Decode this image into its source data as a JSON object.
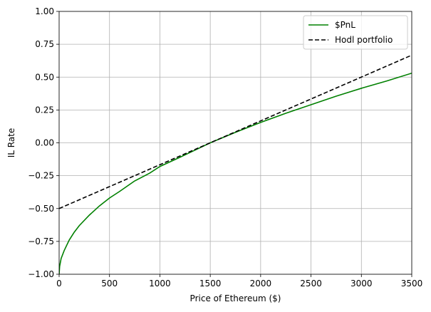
{
  "chart_data": {
    "type": "line",
    "title": "",
    "xlabel": "Price of Ethereum ($)",
    "ylabel": "IL Rate",
    "xlim": [
      0,
      3500
    ],
    "ylim": [
      -1.0,
      1.0
    ],
    "x_ticks": [
      0,
      500,
      1000,
      1500,
      2000,
      2500,
      3000,
      3500
    ],
    "y_ticks": [
      -1.0,
      -0.75,
      -0.5,
      -0.25,
      0.0,
      0.25,
      0.5,
      0.75,
      1.0
    ],
    "x_tick_labels": [
      "0",
      "500",
      "1000",
      "1500",
      "2000",
      "2500",
      "3000",
      "3500"
    ],
    "y_tick_labels": [
      "−1.00",
      "−0.75",
      "−0.50",
      "−0.25",
      "0.00",
      "0.25",
      "0.50",
      "0.75",
      "1.00"
    ],
    "grid": true,
    "legend_position": "top-right",
    "series": [
      {
        "name": "$PnL",
        "color": "#008000",
        "style": "solid",
        "x": [
          0,
          5,
          20,
          50,
          100,
          150,
          200,
          300,
          400,
          500,
          600,
          750,
          900,
          1000,
          1200,
          1500,
          1750,
          2000,
          2250,
          2500,
          2750,
          3000,
          3250,
          3500
        ],
        "y": [
          -1.0,
          -0.94,
          -0.88,
          -0.82,
          -0.74,
          -0.68,
          -0.63,
          -0.55,
          -0.48,
          -0.42,
          -0.37,
          -0.29,
          -0.23,
          -0.18,
          -0.11,
          0.0,
          0.08,
          0.155,
          0.225,
          0.29,
          0.355,
          0.415,
          0.47,
          0.53
        ]
      },
      {
        "name": "Hodl portfolio",
        "color": "#000000",
        "style": "dashed",
        "x": [
          0,
          3500
        ],
        "y": [
          -0.5,
          0.667
        ]
      }
    ]
  }
}
